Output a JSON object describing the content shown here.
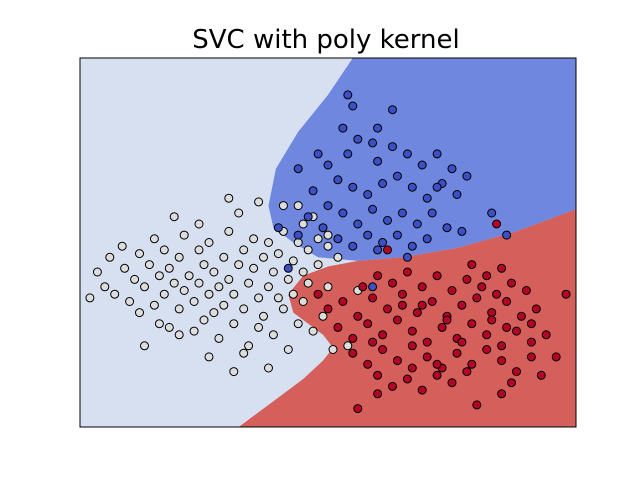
{
  "chart_data": {
    "type": "scatter",
    "title": "SVC with poly kernel",
    "xlabel": "",
    "ylabel": "",
    "xlim": [
      0,
      10
    ],
    "ylim": [
      0,
      10
    ],
    "xticks": [],
    "yticks": [],
    "grid": false,
    "legend": "none",
    "region_colors": {
      "class_0": "#d7e0f0",
      "class_1": "#6f87de",
      "class_2": "#d45f5b"
    },
    "point_colors": {
      "class_0": "#dddddd",
      "class_1": "#3c4fc4",
      "class_2": "#b40426"
    },
    "boundary": {
      "blue_region": [
        [
          5.5,
          10
        ],
        [
          10,
          10
        ],
        [
          10,
          5.9
        ],
        [
          8.8,
          5.3
        ],
        [
          7.6,
          4.85
        ],
        [
          6.5,
          4.6
        ],
        [
          5.6,
          4.5
        ],
        [
          4.8,
          4.6
        ],
        [
          4.3,
          5
        ],
        [
          3.9,
          5.4
        ],
        [
          3.8,
          6
        ],
        [
          3.95,
          7
        ],
        [
          4.4,
          8
        ],
        [
          5,
          9
        ],
        [
          5.5,
          10
        ]
      ],
      "red_region": [
        [
          10,
          0
        ],
        [
          10,
          5.9
        ],
        [
          8.8,
          5.3
        ],
        [
          7.6,
          4.85
        ],
        [
          6.5,
          4.6
        ],
        [
          5.6,
          4.5
        ],
        [
          5.0,
          4.35
        ],
        [
          4.5,
          4.1
        ],
        [
          4.2,
          3.6
        ],
        [
          4.3,
          3.1
        ],
        [
          4.9,
          2.5
        ],
        [
          5.1,
          2.15
        ],
        [
          4.9,
          1.8
        ],
        [
          4.5,
          1.3
        ],
        [
          3.8,
          0.6
        ],
        [
          3.2,
          0
        ],
        [
          10,
          0
        ]
      ]
    },
    "series": [
      {
        "class": 0,
        "points": [
          [
            0.2,
            3.5
          ],
          [
            0.35,
            4.2
          ],
          [
            0.5,
            3.8
          ],
          [
            0.6,
            4.6
          ],
          [
            0.7,
            3.6
          ],
          [
            0.85,
            4.9
          ],
          [
            0.9,
            4.3
          ],
          [
            1.0,
            3.4
          ],
          [
            1.1,
            4.0
          ],
          [
            1.2,
            4.7
          ],
          [
            1.2,
            3.1
          ],
          [
            1.3,
            3.8
          ],
          [
            1.4,
            4.4
          ],
          [
            1.5,
            3.3
          ],
          [
            1.5,
            5.1
          ],
          [
            1.6,
            4.1
          ],
          [
            1.7,
            3.6
          ],
          [
            1.7,
            4.8
          ],
          [
            1.8,
            2.7
          ],
          [
            1.8,
            4.3
          ],
          [
            1.9,
            3.9
          ],
          [
            2.0,
            3.2
          ],
          [
            2.0,
            4.6
          ],
          [
            2.1,
            5.2
          ],
          [
            2.1,
            3.7
          ],
          [
            2.2,
            4.1
          ],
          [
            2.3,
            2.6
          ],
          [
            2.3,
            3.4
          ],
          [
            2.4,
            4.8
          ],
          [
            2.4,
            3.9
          ],
          [
            2.5,
            4.4
          ],
          [
            2.5,
            2.9
          ],
          [
            2.6,
            3.6
          ],
          [
            2.6,
            5.0
          ],
          [
            2.7,
            4.2
          ],
          [
            2.7,
            3.1
          ],
          [
            2.8,
            3.8
          ],
          [
            2.8,
            2.4
          ],
          [
            2.9,
            4.6
          ],
          [
            2.9,
            3.3
          ],
          [
            3.0,
            5.3
          ],
          [
            3.0,
            4.0
          ],
          [
            3.1,
            2.8
          ],
          [
            3.1,
            3.6
          ],
          [
            3.2,
            4.4
          ],
          [
            3.2,
            5.8
          ],
          [
            3.3,
            3.2
          ],
          [
            3.3,
            4.8
          ],
          [
            3.4,
            2.2
          ],
          [
            3.4,
            3.9
          ],
          [
            3.5,
            4.3
          ],
          [
            3.5,
            5.1
          ],
          [
            3.6,
            3.5
          ],
          [
            3.6,
            2.7
          ],
          [
            3.7,
            4.6
          ],
          [
            3.7,
            3.0
          ],
          [
            3.8,
            5.0
          ],
          [
            3.8,
            3.8
          ],
          [
            3.9,
            4.2
          ],
          [
            3.9,
            2.5
          ],
          [
            4.0,
            3.5
          ],
          [
            4.0,
            4.7
          ],
          [
            4.1,
            5.3
          ],
          [
            4.1,
            3.2
          ],
          [
            4.2,
            4.0
          ],
          [
            4.2,
            2.1
          ],
          [
            4.3,
            4.5
          ],
          [
            4.3,
            3.6
          ],
          [
            4.4,
            5.0
          ],
          [
            4.4,
            2.8
          ],
          [
            4.5,
            4.2
          ],
          [
            4.5,
            3.4
          ],
          [
            4.6,
            4.8
          ],
          [
            4.6,
            3.9
          ],
          [
            4.7,
            2.6
          ],
          [
            4.8,
            4.4
          ],
          [
            4.9,
            3.0
          ],
          [
            5.0,
            5.2
          ],
          [
            5.0,
            3.8
          ],
          [
            5.1,
            2.1
          ],
          [
            5.2,
            4.6
          ],
          [
            5.4,
            2.2
          ],
          [
            5.6,
            3.7
          ],
          [
            1.3,
            2.2
          ],
          [
            1.6,
            2.8
          ],
          [
            2.0,
            2.5
          ],
          [
            2.6,
            1.9
          ],
          [
            3.1,
            1.5
          ],
          [
            3.3,
            2.0
          ],
          [
            3.8,
            1.6
          ],
          [
            1.9,
            5.7
          ],
          [
            2.4,
            5.5
          ],
          [
            3.0,
            6.2
          ],
          [
            3.6,
            6.1
          ],
          [
            4.1,
            6.0
          ],
          [
            4.5,
            5.5
          ],
          [
            4.8,
            5.1
          ],
          [
            4.7,
            5.7
          ],
          [
            5.0,
            4.9
          ],
          [
            4.4,
            6.0
          ]
        ]
      },
      {
        "class": 1,
        "points": [
          [
            5.4,
            9.0
          ],
          [
            5.5,
            8.7
          ],
          [
            6.3,
            8.6
          ],
          [
            5.3,
            8.1
          ],
          [
            5.6,
            7.8
          ],
          [
            5.9,
            7.7
          ],
          [
            6.0,
            7.2
          ],
          [
            6.3,
            7.6
          ],
          [
            6.6,
            7.4
          ],
          [
            6.9,
            7.1
          ],
          [
            7.2,
            7.4
          ],
          [
            7.5,
            7.0
          ],
          [
            7.8,
            6.8
          ],
          [
            5.0,
            7.1
          ],
          [
            5.2,
            6.7
          ],
          [
            5.5,
            6.5
          ],
          [
            5.8,
            6.3
          ],
          [
            6.1,
            6.6
          ],
          [
            6.4,
            6.8
          ],
          [
            6.7,
            6.5
          ],
          [
            7.0,
            6.2
          ],
          [
            7.3,
            6.6
          ],
          [
            7.6,
            6.3
          ],
          [
            4.4,
            7.0
          ],
          [
            4.7,
            6.4
          ],
          [
            5.0,
            6.0
          ],
          [
            5.3,
            5.8
          ],
          [
            5.6,
            5.5
          ],
          [
            5.9,
            5.9
          ],
          [
            6.2,
            5.6
          ],
          [
            6.5,
            5.8
          ],
          [
            6.8,
            5.5
          ],
          [
            7.1,
            5.8
          ],
          [
            7.4,
            5.4
          ],
          [
            4.6,
            5.7
          ],
          [
            4.9,
            5.4
          ],
          [
            5.2,
            5.1
          ],
          [
            5.5,
            4.9
          ],
          [
            5.8,
            5.2
          ],
          [
            6.1,
            5.0
          ],
          [
            6.4,
            5.2
          ],
          [
            6.7,
            4.9
          ],
          [
            7.0,
            5.1
          ],
          [
            8.3,
            5.8
          ],
          [
            8.6,
            5.2
          ],
          [
            4.4,
            5.2
          ],
          [
            4.0,
            5.4
          ],
          [
            4.2,
            4.3
          ],
          [
            5.9,
            3.8
          ],
          [
            6.0,
            4.8
          ],
          [
            6.6,
            4.6
          ],
          [
            7.7,
            5.3
          ],
          [
            7.2,
            6.5
          ],
          [
            5.4,
            7.4
          ],
          [
            6.0,
            8.1
          ],
          [
            4.8,
            7.4
          ]
        ]
      },
      {
        "class": 2,
        "points": [
          [
            4.8,
            3.6
          ],
          [
            5.0,
            3.2
          ],
          [
            5.3,
            3.4
          ],
          [
            5.6,
            3.0
          ],
          [
            5.9,
            3.5
          ],
          [
            6.2,
            3.2
          ],
          [
            6.5,
            3.6
          ],
          [
            6.8,
            3.1
          ],
          [
            7.1,
            3.4
          ],
          [
            7.4,
            3.0
          ],
          [
            7.7,
            3.3
          ],
          [
            8.0,
            3.5
          ],
          [
            8.3,
            3.1
          ],
          [
            8.6,
            3.4
          ],
          [
            8.9,
            3.0
          ],
          [
            9.2,
            3.2
          ],
          [
            5.2,
            2.7
          ],
          [
            5.5,
            2.4
          ],
          [
            5.8,
            2.8
          ],
          [
            6.1,
            2.5
          ],
          [
            6.4,
            2.9
          ],
          [
            6.7,
            2.6
          ],
          [
            7.0,
            2.3
          ],
          [
            7.3,
            2.7
          ],
          [
            7.6,
            2.4
          ],
          [
            7.9,
            2.8
          ],
          [
            8.2,
            2.5
          ],
          [
            8.5,
            2.2
          ],
          [
            8.8,
            2.6
          ],
          [
            9.1,
            2.3
          ],
          [
            9.4,
            2.5
          ],
          [
            5.5,
            2.0
          ],
          [
            5.8,
            1.7
          ],
          [
            6.1,
            2.1
          ],
          [
            6.4,
            1.8
          ],
          [
            6.7,
            2.2
          ],
          [
            7.0,
            1.9
          ],
          [
            7.3,
            1.6
          ],
          [
            7.6,
            2.0
          ],
          [
            7.9,
            1.7
          ],
          [
            8.2,
            2.1
          ],
          [
            8.5,
            1.8
          ],
          [
            8.8,
            1.5
          ],
          [
            9.1,
            1.9
          ],
          [
            6.0,
            1.4
          ],
          [
            6.3,
            1.1
          ],
          [
            6.6,
            1.3
          ],
          [
            6.9,
            1.0
          ],
          [
            7.2,
            1.4
          ],
          [
            7.5,
            1.2
          ],
          [
            7.8,
            1.5
          ],
          [
            5.7,
            3.8
          ],
          [
            6.0,
            4.1
          ],
          [
            6.3,
            3.9
          ],
          [
            6.6,
            4.2
          ],
          [
            6.9,
            3.8
          ],
          [
            7.2,
            4.1
          ],
          [
            7.5,
            3.7
          ],
          [
            7.8,
            4.0
          ],
          [
            8.1,
            3.8
          ],
          [
            8.4,
            3.6
          ],
          [
            8.7,
            3.9
          ],
          [
            9.0,
            3.7
          ],
          [
            9.8,
            3.6
          ],
          [
            7.9,
            4.4
          ],
          [
            8.2,
            4.1
          ],
          [
            8.5,
            4.3
          ],
          [
            8.0,
            0.6
          ],
          [
            5.6,
            0.5
          ],
          [
            6.0,
            0.9
          ],
          [
            9.3,
            1.4
          ],
          [
            9.6,
            1.9
          ],
          [
            8.5,
            0.9
          ],
          [
            8.7,
            1.2
          ],
          [
            6.2,
            4.8
          ],
          [
            8.4,
            5.5
          ],
          [
            6.7,
            1.6
          ],
          [
            7.4,
            2.9
          ],
          [
            6.9,
            3.3
          ],
          [
            7.7,
            2.3
          ],
          [
            8.3,
            2.9
          ],
          [
            5.9,
            2.3
          ],
          [
            6.5,
            3.3
          ],
          [
            7.2,
            1.7
          ],
          [
            8.6,
            2.7
          ],
          [
            9.1,
            2.8
          ]
        ]
      }
    ]
  }
}
